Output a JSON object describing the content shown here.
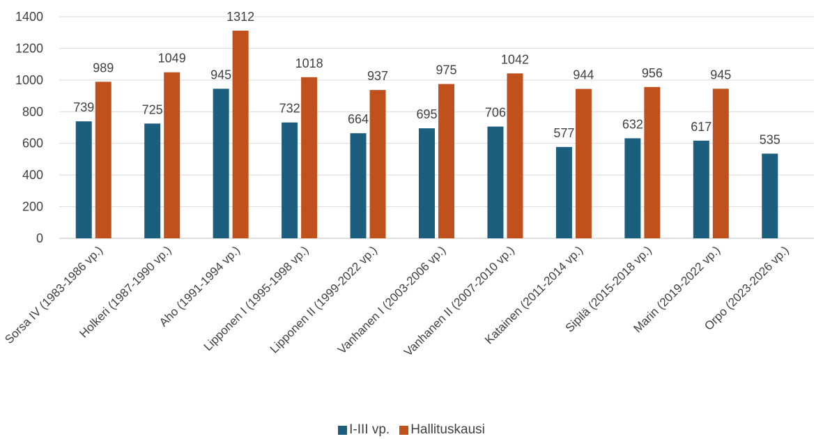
{
  "chart_data": {
    "type": "bar",
    "categories": [
      "Sorsa IV (1983-1986 vp.)",
      "Holkeri (1987-1990 vp.)",
      "Aho (1991-1994 vp.)",
      "Lipponen I (1995-1998 vp.)",
      "Lipponen II (1999-2022 vp.)",
      "Vanhanen I (2003-2006 vp.)",
      "Vanhanen II (2007-2010 vp.)",
      "Katainen (2011-2014 vp.)",
      "Sipilä (2015-2018 vp.)",
      "Marin (2019-2022 vp.)",
      "Orpo (2023-2026 vp.)"
    ],
    "series": [
      {
        "name": "I-III vp.",
        "color": "#1b5e7e",
        "values": [
          739,
          725,
          945,
          732,
          664,
          695,
          706,
          577,
          632,
          617,
          535
        ]
      },
      {
        "name": "Hallituskausi",
        "color": "#c0501c",
        "values": [
          989,
          1049,
          1312,
          1018,
          937,
          975,
          1042,
          944,
          956,
          945,
          null
        ]
      }
    ],
    "ylim": [
      0,
      1400
    ],
    "yticks": [
      0,
      200,
      400,
      600,
      800,
      1000,
      1200,
      1400
    ],
    "grid": true,
    "legend": "bottom"
  }
}
